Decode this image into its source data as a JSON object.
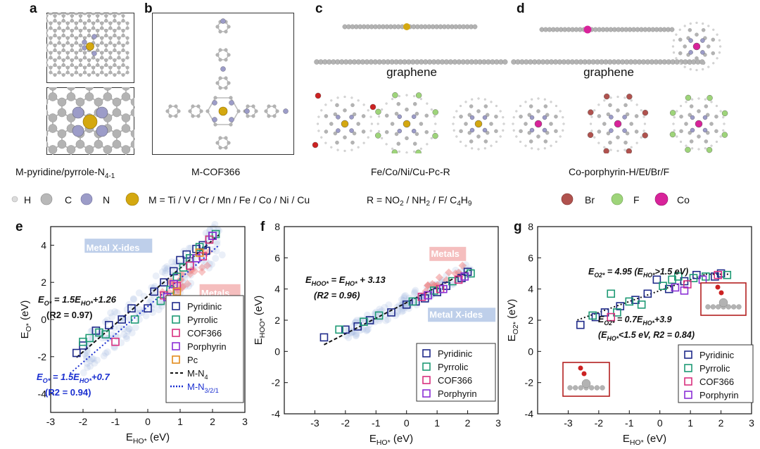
{
  "top": {
    "panel_labels": [
      "a",
      "b",
      "c",
      "d"
    ],
    "captions": {
      "a": "M-pyridine/pyrrole-N",
      "a_sub": "4-1",
      "b": "M-COF366",
      "c": "Fe/Co/Ni/Cu-Pc-R",
      "d": "Co-porphyrin-H/Et/Br/F"
    },
    "graphene_c": "graphene",
    "graphene_d": "graphene",
    "legend": {
      "H": "H",
      "C": "C",
      "N": "N",
      "M": "M = Ti / V / Cr / Mn / Fe / Co / Ni / Cu",
      "R_pre": "R = NO",
      "R_s1": "2",
      "R_mid": " / NH",
      "R_s2": "2",
      "R_mid2": " / F/ C",
      "R_s3": "4",
      "R_h": "H",
      "R_s4": "9",
      "Br": "Br",
      "F": "F",
      "Co": "Co"
    },
    "colors": {
      "H": "#d8d8d8",
      "C": "#b3b3b3",
      "N": "#9c9cc8",
      "M": "#d4a810",
      "Br": "#b0524e",
      "F": "#9ed47a",
      "Co": "#d8239a",
      "O": "#cc2222"
    }
  },
  "chart_data": [
    {
      "panel": "e",
      "type": "scatter",
      "xlabel": "E",
      "xlabel_sub": "HO*",
      "xlabel_unit": " (eV)",
      "ylabel": "E",
      "ylabel_sub": "O*",
      "ylabel_unit": " (eV)",
      "xlim": [
        -3,
        3
      ],
      "ylim": [
        -5,
        5
      ],
      "xticks": [
        -3,
        -2,
        -1,
        0,
        1,
        2,
        3
      ],
      "yticks": [
        -4,
        -2,
        0,
        2,
        4
      ],
      "bg_labels": {
        "metal_xides": "Metal X-ides",
        "metals": "Metals"
      },
      "series": [
        {
          "name": "Pyridinic",
          "color": "#1f2a8a",
          "points": [
            [
              -2.2,
              -1.8
            ],
            [
              -2.0,
              -1.4
            ],
            [
              -1.6,
              -0.6
            ],
            [
              -1.2,
              -0.3
            ],
            [
              -0.8,
              0.0
            ],
            [
              -0.5,
              0.6
            ],
            [
              0.0,
              0.6
            ],
            [
              0.2,
              1.5
            ],
            [
              0.5,
              2.0
            ],
            [
              0.8,
              2.6
            ],
            [
              1.0,
              3.2
            ],
            [
              1.2,
              3.5
            ],
            [
              1.5,
              3.8
            ],
            [
              1.7,
              4.0
            ],
            [
              1.8,
              3.7
            ],
            [
              2.0,
              4.5
            ]
          ]
        },
        {
          "name": "Pyrrolic",
          "color": "#1e9a74",
          "points": [
            [
              -2.0,
              -1.2
            ],
            [
              -1.8,
              -1.0
            ],
            [
              -1.5,
              -0.7
            ],
            [
              -1.3,
              -0.8
            ],
            [
              -0.4,
              0.0
            ],
            [
              0.4,
              1.0
            ],
            [
              0.7,
              1.6
            ],
            [
              0.9,
              2.3
            ],
            [
              1.1,
              2.8
            ],
            [
              1.3,
              3.3
            ],
            [
              1.6,
              3.9
            ],
            [
              1.9,
              4.3
            ],
            [
              2.1,
              4.6
            ]
          ]
        },
        {
          "name": "COF366",
          "color": "#d9307f",
          "points": [
            [
              -1.0,
              -1.2
            ],
            [
              0.5,
              1.3
            ],
            [
              0.9,
              1.8
            ],
            [
              1.3,
              2.9
            ],
            [
              1.7,
              3.4
            ],
            [
              1.9,
              4.3
            ]
          ]
        },
        {
          "name": "Porphyrin",
          "color": "#8a2fd6",
          "points": [
            [
              0.6,
              1.2
            ],
            [
              0.8,
              1.9
            ],
            [
              1.5,
              3.3
            ],
            [
              2.0,
              4.5
            ]
          ]
        },
        {
          "name": "Pc",
          "color": "#e38a1a",
          "points": [
            [
              0.9,
              1.5
            ],
            [
              1.6,
              3.6
            ]
          ]
        }
      ],
      "fits": [
        {
          "name": "M-N",
          "name_sub": "4",
          "style": "dashed",
          "color": "#111111",
          "slope": 1.5,
          "intercept": 1.26,
          "x0": -2.2,
          "x1": 2.2
        },
        {
          "name": "M-N",
          "name_sub": "3/2/1",
          "style": "dotted",
          "color": "#1a2fd0",
          "slope": 1.5,
          "intercept": 0.7,
          "x0": -2.4,
          "x1": 2.2
        }
      ],
      "annotations": {
        "fit1_a": "E",
        "fit1_s1": "O*",
        "fit1_b": " = 1.5E",
        "fit1_s2": "HO*",
        "fit1_c": "+1.26",
        "fit1_r": "(R",
        "fit1_r2": "2",
        "fit1_rv": " = 0.97)",
        "fit2_a": "E",
        "fit2_s1": "O*",
        "fit2_b": " = 1.5E",
        "fit2_s2": "HO*",
        "fit2_c": "+0.7",
        "fit2_r": "(R",
        "fit2_r2": "2",
        "fit2_rv": " = 0.94)"
      }
    },
    {
      "panel": "f",
      "type": "scatter",
      "xlabel": "E",
      "xlabel_sub": "HO*",
      "xlabel_unit": " (eV)",
      "ylabel": "E",
      "ylabel_sub": "HOO*",
      "ylabel_unit": " (eV)",
      "xlim": [
        -4,
        3
      ],
      "ylim": [
        -4,
        8
      ],
      "xticks": [
        -3,
        -2,
        -1,
        0,
        1,
        2,
        3
      ],
      "yticks": [
        -4,
        -2,
        0,
        2,
        4,
        6,
        8
      ],
      "bg_labels": {
        "metal_xides": "Metal X-ides",
        "metals": "Metals"
      },
      "series": [
        {
          "name": "Pyridinic",
          "color": "#1f2a8a",
          "points": [
            [
              -2.7,
              0.9
            ],
            [
              -2.0,
              1.4
            ],
            [
              -1.6,
              1.6
            ],
            [
              -1.2,
              2.0
            ],
            [
              -0.5,
              2.5
            ],
            [
              0.0,
              3.0
            ],
            [
              0.3,
              3.2
            ],
            [
              0.6,
              3.4
            ],
            [
              1.0,
              3.8
            ],
            [
              1.3,
              4.2
            ],
            [
              1.8,
              4.7
            ],
            [
              2.0,
              5.1
            ]
          ]
        },
        {
          "name": "Pyrrolic",
          "color": "#1e9a74",
          "points": [
            [
              -2.2,
              1.4
            ],
            [
              -1.4,
              1.9
            ],
            [
              -0.9,
              2.3
            ],
            [
              0.2,
              3.2
            ],
            [
              0.9,
              3.9
            ],
            [
              1.5,
              4.5
            ],
            [
              2.1,
              5.0
            ]
          ]
        },
        {
          "name": "COF366",
          "color": "#d9307f",
          "points": [
            [
              0.5,
              3.5
            ],
            [
              1.1,
              4.0
            ],
            [
              1.7,
              4.6
            ]
          ]
        },
        {
          "name": "Porphyrin",
          "color": "#8a2fd6",
          "points": [
            [
              0.7,
              3.6
            ],
            [
              1.2,
              4.0
            ],
            [
              1.9,
              4.8
            ]
          ]
        }
      ],
      "fits": [
        {
          "name": "fit",
          "style": "dashed",
          "color": "#111111",
          "slope": 1.0,
          "intercept": 3.13,
          "x0": -2.7,
          "x1": 2.1
        }
      ],
      "annotations": {
        "fit1_a": "E",
        "fit1_s1": "HOO*",
        "fit1_b": " = E",
        "fit1_s2": "HO*",
        "fit1_c": " + 3.13",
        "fit1_r": "(R",
        "fit1_r2": "2",
        "fit1_rv": " = 0.96)"
      }
    },
    {
      "panel": "g",
      "type": "scatter",
      "xlabel": "E",
      "xlabel_sub": "HO*",
      "xlabel_unit": " (eV)",
      "ylabel": "E",
      "ylabel_sub": "O2*",
      "ylabel_unit": " (eV)",
      "xlim": [
        -4,
        3
      ],
      "ylim": [
        -4,
        8
      ],
      "xticks": [
        -3,
        -2,
        -1,
        0,
        1,
        2,
        3
      ],
      "yticks": [
        -4,
        -2,
        0,
        2,
        4,
        6,
        8
      ],
      "series": [
        {
          "name": "Pyridinic",
          "color": "#1f2a8a",
          "points": [
            [
              -2.6,
              1.7
            ],
            [
              -2.1,
              2.2
            ],
            [
              -1.8,
              2.5
            ],
            [
              -1.3,
              2.9
            ],
            [
              -0.8,
              3.3
            ],
            [
              -0.4,
              3.7
            ],
            [
              -0.1,
              4.6
            ],
            [
              0.3,
              4.0
            ],
            [
              0.8,
              4.5
            ],
            [
              1.2,
              4.9
            ],
            [
              1.8,
              4.8
            ],
            [
              2.0,
              5.0
            ]
          ]
        },
        {
          "name": "Pyrrolic",
          "color": "#1e9a74",
          "points": [
            [
              -2.2,
              2.3
            ],
            [
              -1.6,
              3.7
            ],
            [
              -1.4,
              2.5
            ],
            [
              -1.0,
              3.2
            ],
            [
              -0.6,
              3.0
            ],
            [
              0.1,
              4.2
            ],
            [
              0.4,
              4.6
            ],
            [
              0.6,
              4.8
            ],
            [
              1.1,
              4.7
            ],
            [
              1.5,
              4.8
            ],
            [
              2.2,
              4.9
            ]
          ]
        },
        {
          "name": "COF366",
          "color": "#d9307f",
          "points": [
            [
              -1.6,
              2.2
            ],
            [
              0.9,
              4.3
            ],
            [
              1.9,
              4.9
            ]
          ]
        },
        {
          "name": "Porphyrin",
          "color": "#8a2fd6",
          "points": [
            [
              0.5,
              4.1
            ],
            [
              0.8,
              3.9
            ],
            [
              1.4,
              4.6
            ]
          ]
        }
      ],
      "fits": [
        {
          "name": "low",
          "style": "dotted",
          "color": "#111111",
          "slope": 0.7,
          "intercept": 3.9,
          "x0": -2.7,
          "x1": 1.5
        },
        {
          "name": "high",
          "style": "dotted",
          "color": "#111111",
          "slope": 0.0,
          "intercept": 4.95,
          "x0": 1.5,
          "x1": 2.3
        }
      ],
      "annotations": {
        "fit1_a": "E",
        "fit1_s1": "O2*",
        "fit1_b": " = 4.95 (E",
        "fit1_s2": "HO*",
        "fit1_c": ">1.5 eV)",
        "fit2_a": "E",
        "fit2_s1": "O2*",
        "fit2_b": " = 0.7E",
        "fit2_s2": "HO*",
        "fit2_c": "+3.9",
        "fit2_d": "(E",
        "fit2_s3": "HO*",
        "fit2_e": "<1.5 eV,  R",
        "fit2_s4": "2",
        "fit2_f": " = 0.84)"
      }
    }
  ]
}
